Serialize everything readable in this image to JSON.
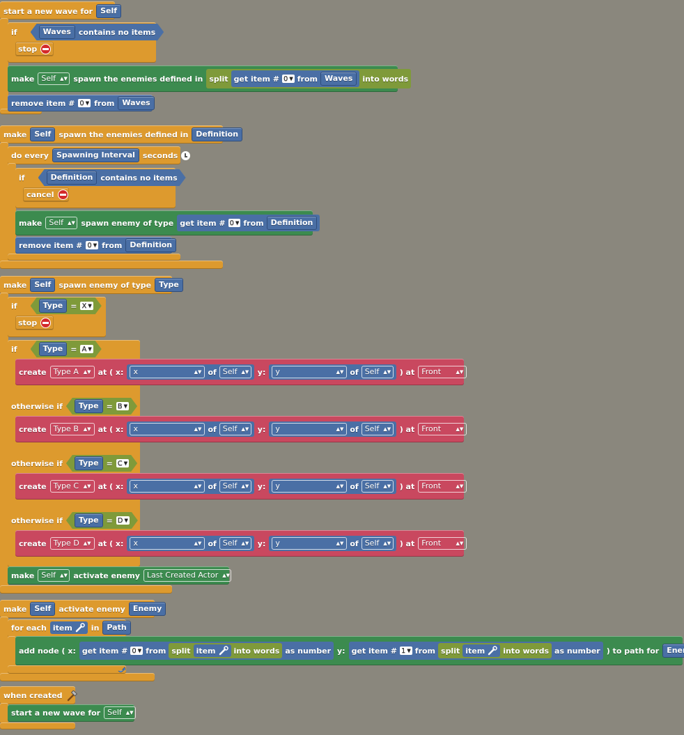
{
  "kw": {
    "start_new_wave_for": "start a new wave for",
    "if": "if",
    "contains_no_items": "contains no items",
    "stop": "stop",
    "make": "make",
    "spawn_enemies_defined_in": "spawn the enemies defined in",
    "split": "split",
    "get_item": "get item #",
    "from": "from",
    "into_words": "into words",
    "remove_item": "remove item #",
    "do_every": "do every",
    "seconds": "seconds",
    "cancel": "cancel",
    "spawn_enemy_of_type": "spawn enemy of type",
    "eq": "=",
    "create": "create",
    "at_x": "at ( x:",
    "of": "of",
    "y": "y:",
    "close_at": ") at",
    "otherwise_if": "otherwise if",
    "activate_enemy": "activate enemy",
    "for_each": "for each",
    "in": "in",
    "add_node_x": "add node ( x:",
    "as_number": "as number",
    "to_path_for": ") to path for",
    "when_created": "when created",
    "item": "item"
  },
  "vars": {
    "self": "Self",
    "waves": "Waves",
    "definition": "Definition",
    "spawning_interval": "Spawning Interval",
    "type": "Type",
    "enemy": "Enemy",
    "path": "Path"
  },
  "nums": {
    "zero": "0",
    "one": "1"
  },
  "letters": {
    "x": "X",
    "a": "A",
    "b": "B",
    "c": "C",
    "d": "D"
  },
  "actors": {
    "a": "Type A",
    "b": "Type B",
    "c": "Type C",
    "d": "Type D",
    "last": "Last Created Actor"
  },
  "attrs": {
    "x": "x",
    "y": "y",
    "front": "Front"
  },
  "colors": {
    "event_orange": "#dd9a2e",
    "action_green": "#3c8b4f",
    "value_blue": "#4a6fa5",
    "create_red": "#c9485f",
    "text_olive": "#7f9a3a",
    "canvas": "#8a877d"
  }
}
